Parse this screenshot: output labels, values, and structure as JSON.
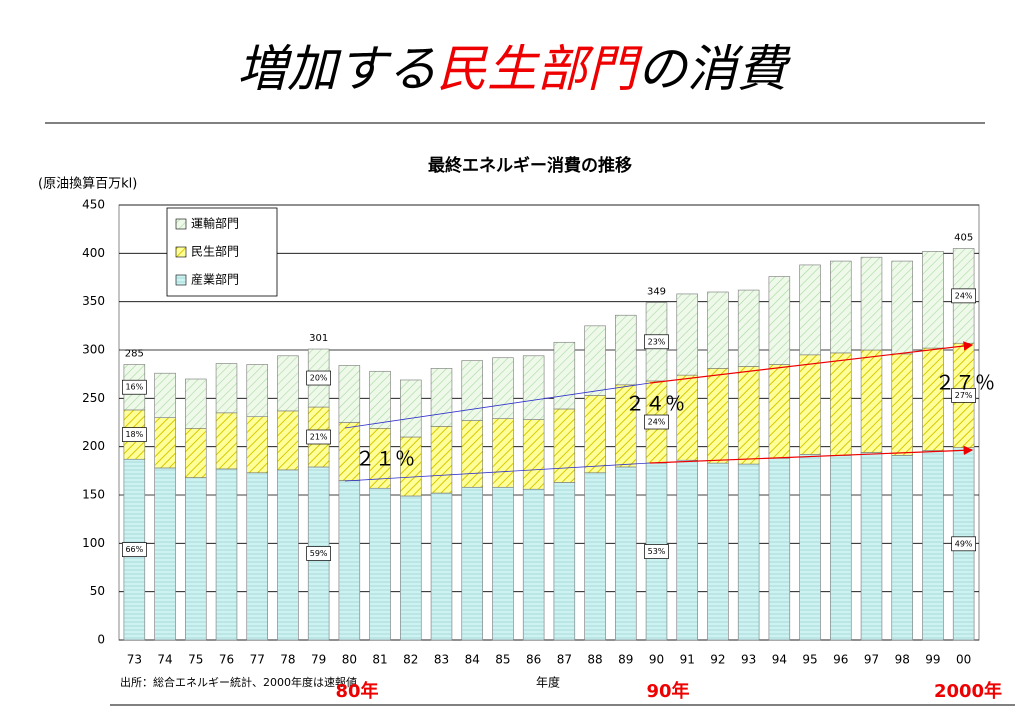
{
  "slide_title": {
    "before": "増加する",
    "highlight": "民生部門",
    "after": "の消費"
  },
  "chart_data": {
    "type": "stacked_bar",
    "title": "最終エネルギー消費の推移",
    "y_label": "(原油換算百万kl)",
    "x_label": "年度",
    "source": "出所：総合エネルギー統計、2000年度は速報値",
    "categories": [
      "73",
      "74",
      "75",
      "76",
      "77",
      "78",
      "79",
      "80",
      "81",
      "82",
      "83",
      "84",
      "85",
      "86",
      "87",
      "88",
      "89",
      "90",
      "91",
      "92",
      "93",
      "94",
      "95",
      "96",
      "97",
      "98",
      "99",
      "00"
    ],
    "series": [
      {
        "name": "産業部門",
        "color": "#ccf2f2",
        "values": [
          187,
          178,
          168,
          177,
          173,
          176,
          179,
          165,
          157,
          149,
          152,
          158,
          158,
          156,
          163,
          173,
          179,
          183,
          186,
          183,
          182,
          188,
          192,
          191,
          194,
          191,
          196,
          199
        ],
        "share_labels": [
          "66%",
          null,
          null,
          null,
          null,
          null,
          "59%",
          null,
          null,
          null,
          null,
          null,
          null,
          null,
          null,
          null,
          null,
          "53%",
          null,
          null,
          null,
          null,
          null,
          null,
          null,
          null,
          null,
          "49%"
        ]
      },
      {
        "name": "民生部門",
        "color": "#ffff99",
        "values": [
          51,
          52,
          51,
          58,
          58,
          61,
          62,
          60,
          62,
          61,
          69,
          69,
          71,
          72,
          76,
          80,
          85,
          85,
          88,
          98,
          101,
          97,
          103,
          106,
          106,
          105,
          106,
          108
        ],
        "share_labels": [
          "18%",
          null,
          null,
          null,
          null,
          null,
          "21%",
          null,
          null,
          null,
          null,
          null,
          null,
          null,
          null,
          null,
          null,
          "24%",
          null,
          null,
          null,
          null,
          null,
          null,
          null,
          null,
          null,
          "27%"
        ]
      },
      {
        "name": "運輸部門",
        "color": "#d9f2d0",
        "values": [
          47,
          46,
          51,
          51,
          54,
          57,
          60,
          59,
          59,
          59,
          60,
          62,
          63,
          66,
          69,
          72,
          72,
          81,
          84,
          79,
          79,
          91,
          93,
          95,
          96,
          96,
          100,
          98
        ],
        "share_labels": [
          "16%",
          null,
          null,
          null,
          null,
          null,
          "20%",
          null,
          null,
          null,
          null,
          null,
          null,
          null,
          null,
          null,
          null,
          "23%",
          null,
          null,
          null,
          null,
          null,
          null,
          null,
          null,
          null,
          "24%"
        ]
      }
    ],
    "totals": [
      285,
      null,
      null,
      null,
      null,
      null,
      301,
      null,
      null,
      null,
      null,
      null,
      null,
      null,
      null,
      null,
      null,
      349,
      null,
      null,
      null,
      null,
      null,
      null,
      null,
      null,
      null,
      405
    ],
    "ylim": [
      0,
      450
    ],
    "yticks": [
      0,
      50,
      100,
      150,
      200,
      250,
      300,
      350,
      400,
      450
    ],
    "grid": true,
    "legend": "upper left",
    "annotations": [
      "２１％",
      "２４％",
      "２７％"
    ],
    "year_marks": [
      "80年",
      "90年",
      "2000年"
    ]
  }
}
